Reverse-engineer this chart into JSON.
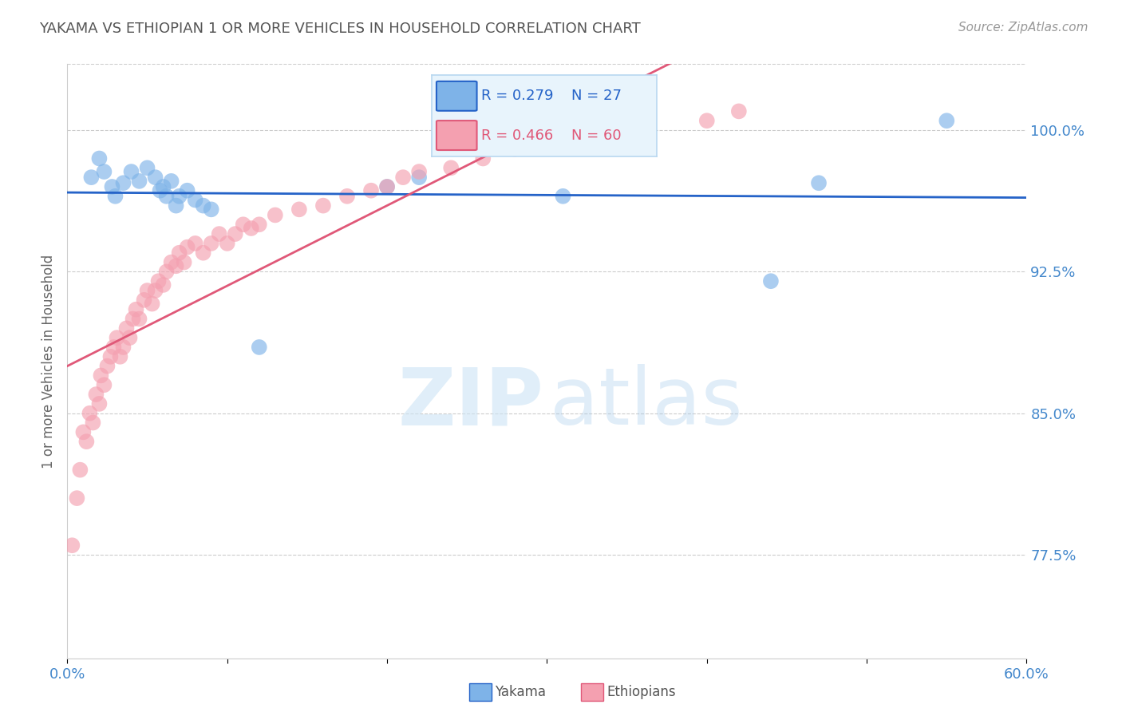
{
  "title": "YAKAMA VS ETHIOPIAN 1 OR MORE VEHICLES IN HOUSEHOLD CORRELATION CHART",
  "source": "Source: ZipAtlas.com",
  "ylabel": "1 or more Vehicles in Household",
  "yticks": [
    77.5,
    85.0,
    92.5,
    100.0
  ],
  "ytick_labels": [
    "77.5%",
    "85.0%",
    "92.5%",
    "100.0%"
  ],
  "xmin": 0.0,
  "xmax": 60.0,
  "ymin": 72.0,
  "ymax": 103.5,
  "yakama_R": 0.279,
  "yakama_N": 27,
  "ethiopian_R": 0.466,
  "ethiopian_N": 60,
  "yakama_color": "#7eb3e8",
  "ethiopian_color": "#f4a0b0",
  "yakama_line_color": "#2563c8",
  "ethiopian_line_color": "#e05878",
  "legend_box_color": "#e8f4fc",
  "legend_border_color": "#b8d8f0",
  "yakama_x": [
    1.5,
    2.0,
    2.3,
    2.8,
    3.0,
    3.5,
    4.0,
    4.5,
    5.0,
    5.5,
    5.8,
    6.0,
    6.2,
    6.5,
    6.8,
    7.0,
    7.5,
    8.0,
    8.5,
    9.0,
    12.0,
    20.0,
    22.0,
    31.0,
    44.0,
    47.0,
    55.0
  ],
  "yakama_y": [
    97.5,
    98.5,
    97.8,
    97.0,
    96.5,
    97.2,
    97.8,
    97.3,
    98.0,
    97.5,
    96.8,
    97.0,
    96.5,
    97.3,
    96.0,
    96.5,
    96.8,
    96.3,
    96.0,
    95.8,
    88.5,
    97.0,
    97.5,
    96.5,
    92.0,
    97.2,
    100.5
  ],
  "ethiopian_x": [
    0.3,
    0.6,
    0.8,
    1.0,
    1.2,
    1.4,
    1.6,
    1.8,
    2.0,
    2.1,
    2.3,
    2.5,
    2.7,
    2.9,
    3.1,
    3.3,
    3.5,
    3.7,
    3.9,
    4.1,
    4.3,
    4.5,
    4.8,
    5.0,
    5.3,
    5.5,
    5.7,
    6.0,
    6.2,
    6.5,
    6.8,
    7.0,
    7.3,
    7.5,
    8.0,
    8.5,
    9.0,
    9.5,
    10.0,
    10.5,
    11.0,
    11.5,
    12.0,
    13.0,
    14.5,
    16.0,
    17.5,
    19.0,
    20.0,
    21.0,
    22.0,
    24.0,
    26.0,
    28.0,
    29.5,
    31.0,
    33.0,
    36.0,
    40.0,
    42.0
  ],
  "ethiopian_y": [
    78.0,
    80.5,
    82.0,
    84.0,
    83.5,
    85.0,
    84.5,
    86.0,
    85.5,
    87.0,
    86.5,
    87.5,
    88.0,
    88.5,
    89.0,
    88.0,
    88.5,
    89.5,
    89.0,
    90.0,
    90.5,
    90.0,
    91.0,
    91.5,
    90.8,
    91.5,
    92.0,
    91.8,
    92.5,
    93.0,
    92.8,
    93.5,
    93.0,
    93.8,
    94.0,
    93.5,
    94.0,
    94.5,
    94.0,
    94.5,
    95.0,
    94.8,
    95.0,
    95.5,
    95.8,
    96.0,
    96.5,
    96.8,
    97.0,
    97.5,
    97.8,
    98.0,
    98.5,
    99.0,
    99.2,
    99.5,
    100.0,
    100.2,
    100.5,
    101.0
  ],
  "background_color": "#ffffff",
  "grid_color": "#cccccc",
  "title_color": "#555555",
  "axis_color": "#4488cc",
  "source_color": "#999999"
}
